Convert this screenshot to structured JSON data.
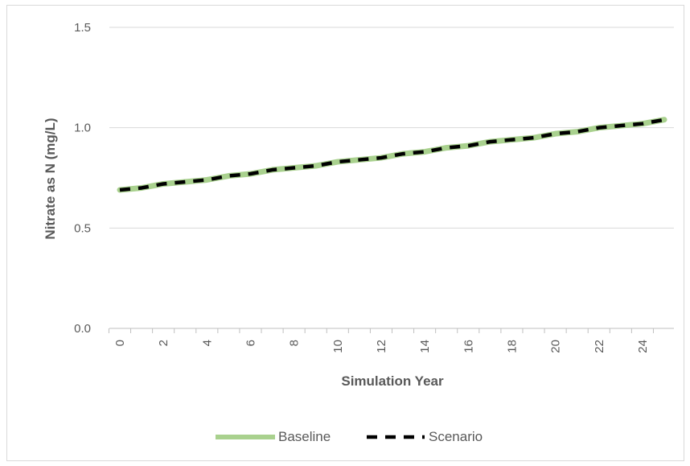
{
  "chart_data": {
    "type": "line",
    "title": "",
    "xlabel": "Simulation Year",
    "ylabel": "Nitrate as N (mg/L)",
    "xlim": [
      0,
      25
    ],
    "ylim": [
      0,
      1.5
    ],
    "x_ticks": [
      "0",
      "2",
      "4",
      "6",
      "8",
      "10",
      "12",
      "14",
      "16",
      "18",
      "20",
      "22",
      "24"
    ],
    "y_ticks": [
      "0.0",
      "0.5",
      "1.0",
      "1.5"
    ],
    "y_tick_values": [
      0,
      0.5,
      1.0,
      1.5
    ],
    "grid": "horizontal",
    "legend_position": "bottom",
    "x": [
      0,
      1,
      2,
      3,
      4,
      5,
      6,
      7,
      8,
      9,
      10,
      11,
      12,
      13,
      14,
      15,
      16,
      17,
      18,
      19,
      20,
      21,
      22,
      23,
      24,
      25
    ],
    "series": [
      {
        "name": "Baseline",
        "color": "#a9d18e",
        "style": "solid",
        "values": [
          0.69,
          0.7,
          0.72,
          0.73,
          0.74,
          0.76,
          0.77,
          0.79,
          0.8,
          0.81,
          0.83,
          0.84,
          0.85,
          0.87,
          0.88,
          0.9,
          0.91,
          0.93,
          0.94,
          0.95,
          0.97,
          0.98,
          1.0,
          1.01,
          1.02,
          1.04
        ]
      },
      {
        "name": "Scenario",
        "color": "#000000",
        "style": "dashed",
        "values": [
          0.69,
          0.7,
          0.72,
          0.73,
          0.74,
          0.76,
          0.77,
          0.79,
          0.8,
          0.81,
          0.83,
          0.84,
          0.85,
          0.87,
          0.88,
          0.9,
          0.91,
          0.93,
          0.94,
          0.95,
          0.97,
          0.98,
          1.0,
          1.01,
          1.02,
          1.04
        ]
      }
    ]
  }
}
